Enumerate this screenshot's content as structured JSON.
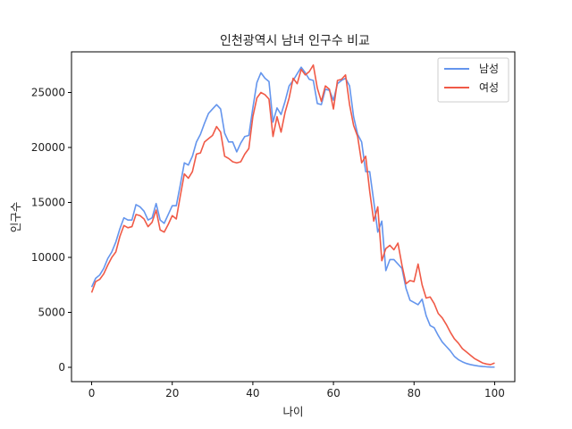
{
  "chart_data": {
    "type": "line",
    "title": "인천광역시 남녀 인구수 비교",
    "xlabel": "나이",
    "ylabel": "인구수",
    "xlim": [
      -5,
      105
    ],
    "ylim": [
      -1300,
      28700
    ],
    "xticks": [
      0,
      20,
      40,
      60,
      80,
      100
    ],
    "yticks": [
      0,
      5000,
      10000,
      15000,
      20000,
      25000
    ],
    "grid": false,
    "legend_position": "top-right",
    "x": [
      0,
      1,
      2,
      3,
      4,
      5,
      6,
      7,
      8,
      9,
      10,
      11,
      12,
      13,
      14,
      15,
      16,
      17,
      18,
      19,
      20,
      21,
      22,
      23,
      24,
      25,
      26,
      27,
      28,
      29,
      30,
      31,
      32,
      33,
      34,
      35,
      36,
      37,
      38,
      39,
      40,
      41,
      42,
      43,
      44,
      45,
      46,
      47,
      48,
      49,
      50,
      51,
      52,
      53,
      54,
      55,
      56,
      57,
      58,
      59,
      60,
      61,
      62,
      63,
      64,
      65,
      66,
      67,
      68,
      69,
      70,
      71,
      72,
      73,
      74,
      75,
      76,
      77,
      78,
      79,
      80,
      81,
      82,
      83,
      84,
      85,
      86,
      87,
      88,
      89,
      90,
      91,
      92,
      93,
      94,
      95,
      96,
      97,
      98,
      99,
      100
    ],
    "series": [
      {
        "name": "남성",
        "color": "#6495ED",
        "values": [
          7300,
          8100,
          8400,
          9000,
          9900,
          10500,
          11400,
          12600,
          13600,
          13400,
          13400,
          14800,
          14600,
          14200,
          13400,
          13600,
          14900,
          13400,
          13100,
          13900,
          14700,
          14700,
          16600,
          18600,
          18400,
          19200,
          20500,
          21200,
          22200,
          23100,
          23500,
          23900,
          23500,
          21300,
          20500,
          20500,
          19600,
          20400,
          21000,
          21100,
          23600,
          25900,
          26800,
          26300,
          26000,
          22300,
          23600,
          23000,
          24200,
          25600,
          26100,
          26700,
          27300,
          26800,
          26200,
          26100,
          24000,
          23900,
          25300,
          25200,
          24300,
          25800,
          26100,
          26300,
          25600,
          22800,
          21200,
          20500,
          17800,
          17800,
          15100,
          12300,
          13300,
          8800,
          9800,
          9800,
          9400,
          9000,
          7200,
          6100,
          5900,
          5700,
          6200,
          4700,
          3800,
          3600,
          2900,
          2300,
          1900,
          1500,
          1000,
          700,
          500,
          350,
          250,
          180,
          120,
          80,
          50,
          30,
          20
        ]
      },
      {
        "name": "여성",
        "color": "#F05A47",
        "values": [
          6800,
          7800,
          8000,
          8500,
          9300,
          10000,
          10500,
          11900,
          12900,
          12700,
          12800,
          13900,
          13800,
          13500,
          12800,
          13200,
          14300,
          12500,
          12300,
          13000,
          13800,
          13500,
          15600,
          17600,
          17200,
          17800,
          19400,
          19500,
          20500,
          20800,
          21100,
          21900,
          21400,
          19200,
          19000,
          18700,
          18600,
          18700,
          19400,
          19900,
          22800,
          24500,
          25000,
          24800,
          24400,
          21000,
          22800,
          21400,
          23200,
          24500,
          26300,
          25800,
          27100,
          26600,
          26900,
          27500,
          25400,
          24200,
          25600,
          25300,
          23500,
          26100,
          26200,
          26600,
          23900,
          22000,
          21000,
          18600,
          19200,
          16000,
          13300,
          14600,
          9700,
          10800,
          11100,
          10700,
          11300,
          9300,
          7600,
          7900,
          7800,
          9400,
          7500,
          6300,
          6400,
          5800,
          4900,
          4500,
          3900,
          3200,
          2600,
          2200,
          1700,
          1400,
          1100,
          800,
          600,
          400,
          300,
          250,
          400
        ]
      }
    ]
  }
}
